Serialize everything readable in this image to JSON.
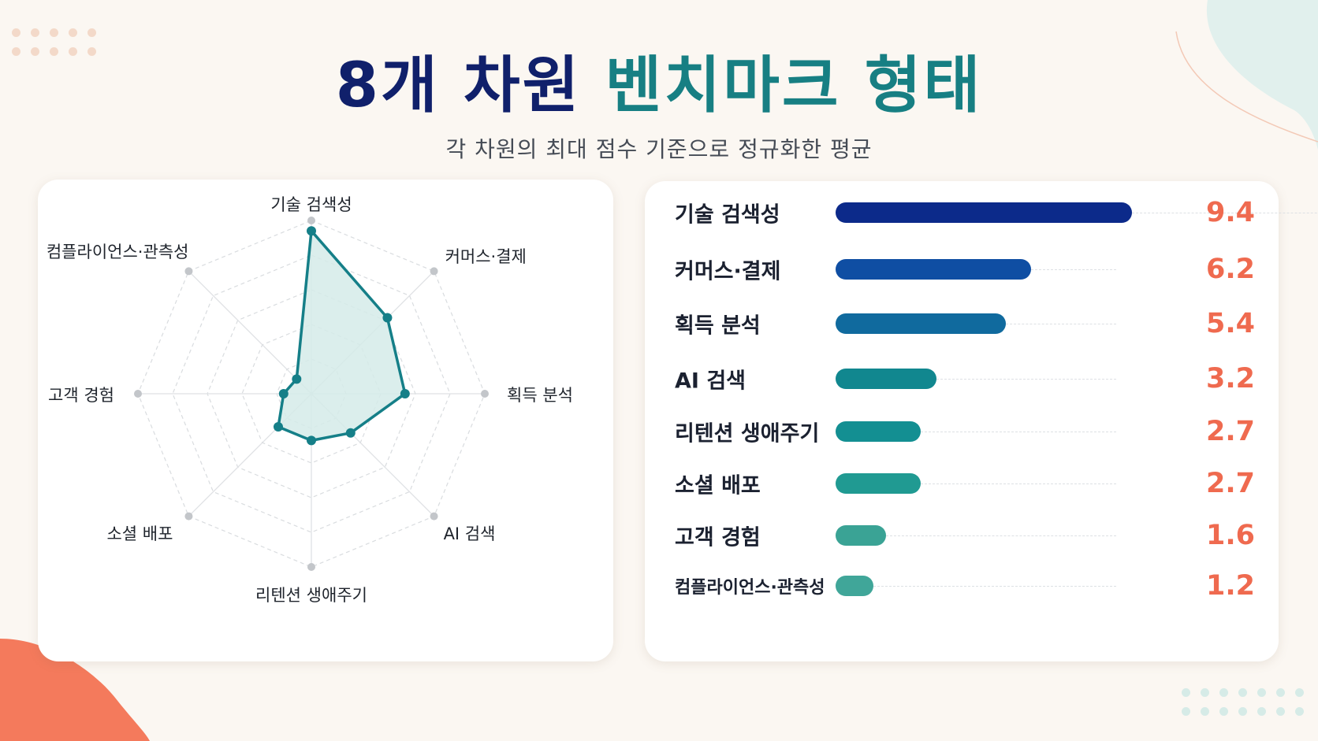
{
  "header": {
    "title_part1": "8개 차원",
    "title_part2": "벤치마크 형태",
    "subtitle": "각 차원의 최대 점수 기준으로 정규화한 평균"
  },
  "colors": {
    "title_dark": "#10206b",
    "title_teal": "#177f83",
    "value": "#ef6a4f",
    "radar_stroke": "#157f88",
    "radar_fill": "#d5ebe9",
    "accent_orange": "#f47a5c",
    "accent_mint": "#e1f0ed"
  },
  "chart_data": [
    {
      "type": "radar",
      "title": "",
      "categories": [
        "기술 검색성",
        "커머스·결제",
        "획득 분석",
        "AI 검색",
        "리텐션 생애주기",
        "소셜 배포",
        "고객 경험",
        "컴플라이언스·관측성"
      ],
      "values": [
        9.4,
        6.2,
        5.4,
        3.2,
        2.7,
        2.7,
        1.6,
        1.2
      ],
      "range": [
        0,
        10
      ],
      "grid": true
    },
    {
      "type": "bar",
      "orientation": "horizontal",
      "title": "",
      "categories": [
        "기술 검색성",
        "커머스·결제",
        "획득 분석",
        "AI 검색",
        "리텐션 생애주기",
        "소셜 배포",
        "고객 경험",
        "컴플라이언스·관측성"
      ],
      "values": [
        9.4,
        6.2,
        5.4,
        3.2,
        2.7,
        2.7,
        1.6,
        1.2
      ],
      "value_labels": [
        "9.4",
        "6.2",
        "5.4",
        "3.2",
        "2.7",
        "2.7",
        "1.6",
        "1.2"
      ],
      "bar_colors": [
        "#0c2a8a",
        "#0f4ea3",
        "#106a9e",
        "#11878f",
        "#138f92",
        "#209a92",
        "#3aa395",
        "#40a699"
      ],
      "range": [
        0,
        10
      ]
    }
  ]
}
